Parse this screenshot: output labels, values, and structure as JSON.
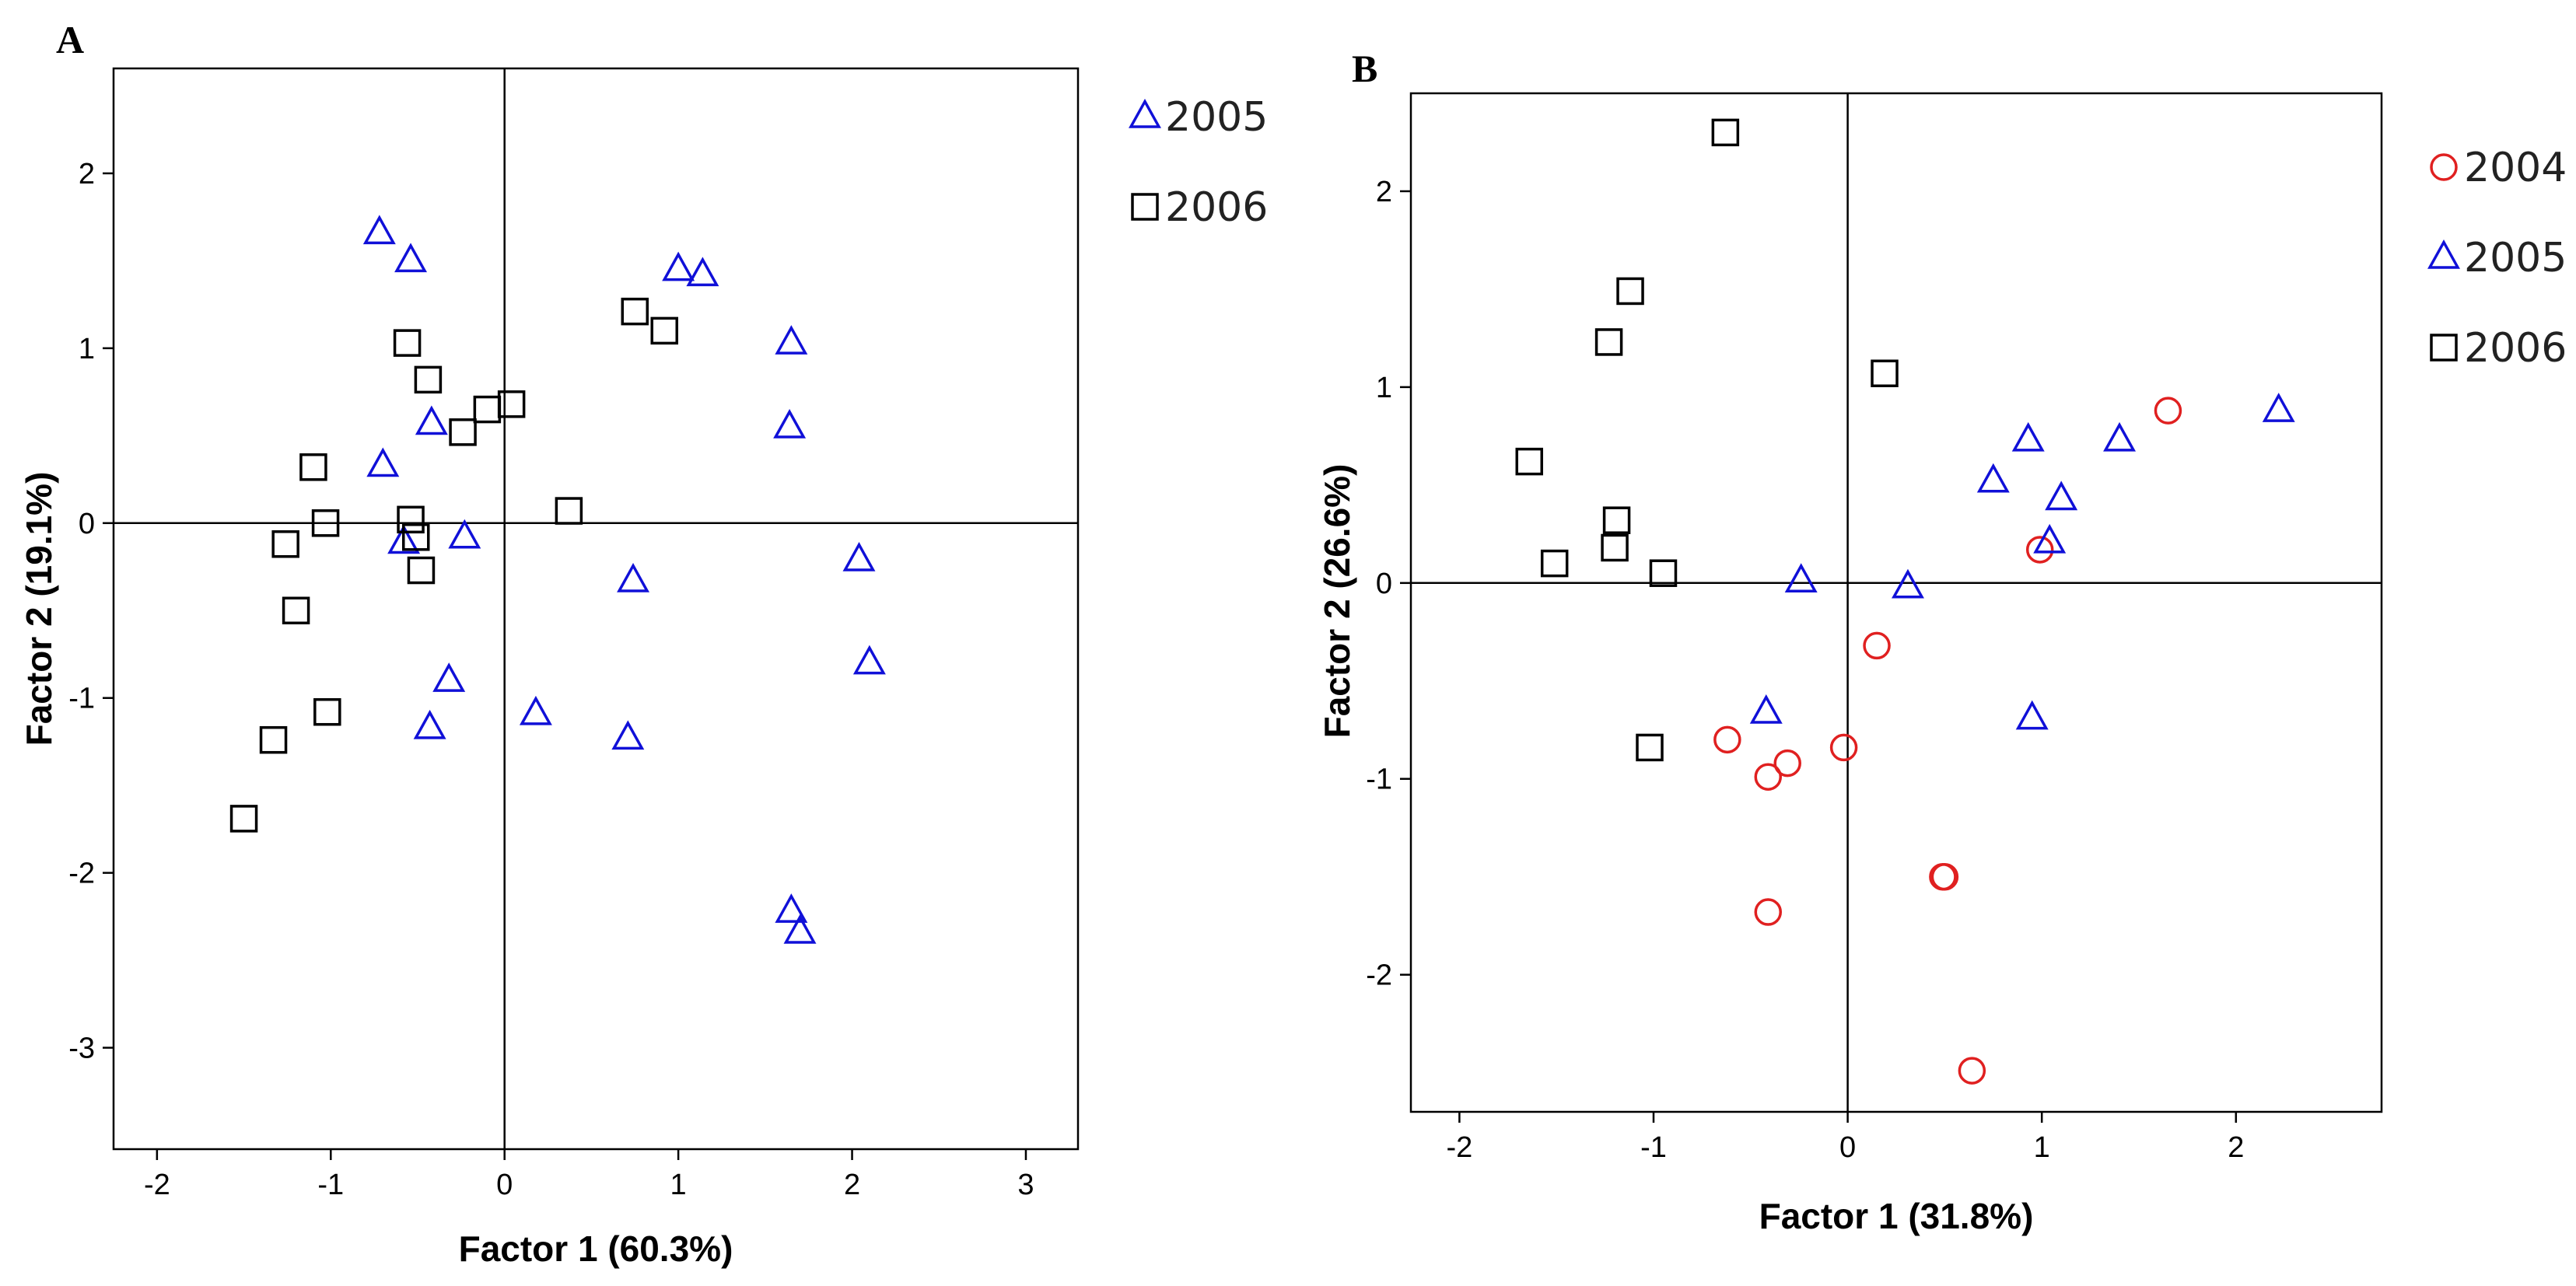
{
  "chart_data": [
    {
      "type": "scatter",
      "panel": "A",
      "xlabel": "Factor 1 (60.3%)",
      "ylabel": "Factor 2 (19.1%)",
      "xlim": [
        -2.25,
        3.3
      ],
      "ylim": [
        -3.58,
        2.6
      ],
      "xticks": [
        "-2",
        "-1",
        "0",
        "1",
        "2",
        "3"
      ],
      "yticks": [
        "-3",
        "-2",
        "-1",
        "0",
        "1",
        "2"
      ],
      "legend_position": "right",
      "series": [
        {
          "name": "2005",
          "marker": "triangle",
          "color": "#1010d8",
          "points": [
            [
              -0.72,
              1.66
            ],
            [
              -0.54,
              1.5
            ],
            [
              -0.42,
              0.57
            ],
            [
              -0.7,
              0.33
            ],
            [
              -0.58,
              -0.11
            ],
            [
              -0.23,
              -0.08
            ],
            [
              -0.32,
              -0.9
            ],
            [
              -0.43,
              -1.17
            ],
            [
              1.0,
              1.45
            ],
            [
              1.14,
              1.42
            ],
            [
              1.65,
              1.03
            ],
            [
              1.64,
              0.55
            ],
            [
              0.74,
              -0.33
            ],
            [
              0.18,
              -1.09
            ],
            [
              0.71,
              -1.23
            ],
            [
              2.04,
              -0.21
            ],
            [
              2.1,
              -0.8
            ],
            [
              1.65,
              -2.22
            ],
            [
              1.7,
              -2.34
            ]
          ]
        },
        {
          "name": "2006",
          "marker": "square",
          "color": "#000000",
          "points": [
            [
              -0.56,
              1.03
            ],
            [
              -0.44,
              0.82
            ],
            [
              -0.24,
              0.52
            ],
            [
              -0.1,
              0.65
            ],
            [
              0.04,
              0.68
            ],
            [
              -1.1,
              0.32
            ],
            [
              -1.03,
              0.0
            ],
            [
              -1.26,
              -0.12
            ],
            [
              -0.54,
              0.02
            ],
            [
              -0.51,
              -0.08
            ],
            [
              -0.48,
              -0.27
            ],
            [
              -1.2,
              -0.5
            ],
            [
              -1.02,
              -1.08
            ],
            [
              -1.33,
              -1.24
            ],
            [
              -1.5,
              -1.69
            ],
            [
              0.37,
              0.07
            ],
            [
              0.75,
              1.21
            ],
            [
              0.92,
              1.1
            ]
          ]
        }
      ]
    },
    {
      "type": "scatter",
      "panel": "B",
      "xlabel": "Factor 1 (31.8%)",
      "ylabel": "Factor 2 (26.6%)",
      "xlim": [
        -2.25,
        2.75
      ],
      "ylim": [
        -2.7,
        2.5
      ],
      "xticks": [
        "-2",
        "-1",
        "0",
        "1",
        "2"
      ],
      "yticks": [
        "-2",
        "-1",
        "0",
        "1",
        "2"
      ],
      "legend_position": "right",
      "series": [
        {
          "name": "2004",
          "marker": "circle",
          "color": "#e02020",
          "points": [
            [
              1.65,
              0.88
            ],
            [
              0.99,
              0.17
            ],
            [
              0.15,
              -0.32
            ],
            [
              -0.62,
              -0.8
            ],
            [
              -0.31,
              -0.92
            ],
            [
              -0.41,
              -0.99
            ],
            [
              -0.02,
              -0.84
            ],
            [
              -0.41,
              -1.68
            ],
            [
              0.49,
              -1.5
            ],
            [
              0.5,
              -1.5
            ],
            [
              0.64,
              -2.49
            ]
          ]
        },
        {
          "name": "2005",
          "marker": "triangle",
          "color": "#1010d8",
          "points": [
            [
              0.93,
              0.73
            ],
            [
              0.75,
              0.52
            ],
            [
              1.4,
              0.73
            ],
            [
              2.22,
              0.88
            ],
            [
              1.1,
              0.43
            ],
            [
              1.04,
              0.21
            ],
            [
              -0.24,
              0.01
            ],
            [
              0.31,
              -0.02
            ],
            [
              -0.42,
              -0.66
            ],
            [
              0.95,
              -0.69
            ]
          ]
        },
        {
          "name": "2006",
          "marker": "square",
          "color": "#000000",
          "points": [
            [
              -0.63,
              2.3
            ],
            [
              -1.12,
              1.49
            ],
            [
              -1.23,
              1.23
            ],
            [
              0.19,
              1.07
            ],
            [
              -1.64,
              0.62
            ],
            [
              -1.51,
              0.1
            ],
            [
              -1.19,
              0.32
            ],
            [
              -1.2,
              0.18
            ],
            [
              -0.95,
              0.05
            ],
            [
              -1.02,
              -0.84
            ]
          ]
        }
      ]
    }
  ]
}
